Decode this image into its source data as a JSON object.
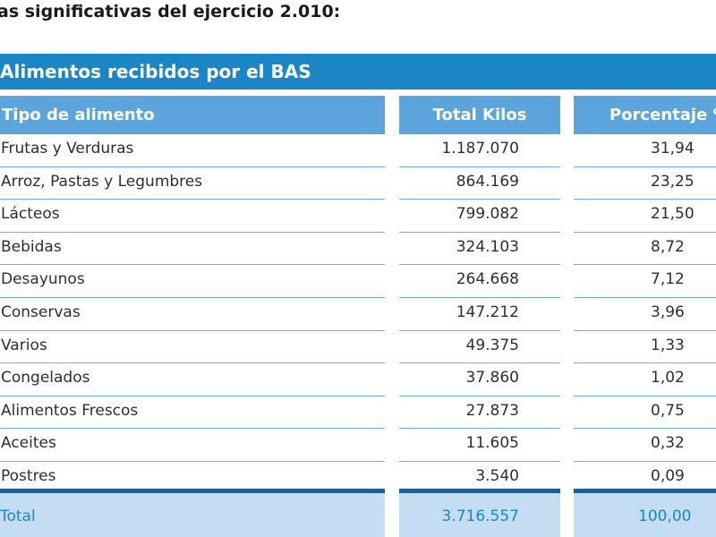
{
  "heading": "as significativas del ejercicio 2.010:",
  "table": {
    "title": "Alimentos recibidos por el BAS",
    "columns": [
      "Tipo de alimento",
      "Total Kilos",
      "Porcentaje %"
    ],
    "rows": [
      {
        "tipo": "Frutas y Verduras",
        "kilos": "1.187.070",
        "pct": "31,94"
      },
      {
        "tipo": "Arroz, Pastas y Legumbres",
        "kilos": "864.169",
        "pct": "23,25"
      },
      {
        "tipo": "Lácteos",
        "kilos": "799.082",
        "pct": "21,50"
      },
      {
        "tipo": "Bebidas",
        "kilos": "324.103",
        "pct": "8,72"
      },
      {
        "tipo": "Desayunos",
        "kilos": "264.668",
        "pct": "7,12"
      },
      {
        "tipo": "Conservas",
        "kilos": "147.212",
        "pct": "3,96"
      },
      {
        "tipo": "Varios",
        "kilos": "49.375",
        "pct": "1,33"
      },
      {
        "tipo": "Congelados",
        "kilos": "37.860",
        "pct": "1,02"
      },
      {
        "tipo": "Alimentos Frescos",
        "kilos": "27.873",
        "pct": "0,75"
      },
      {
        "tipo": "Aceites",
        "kilos": "11.605",
        "pct": "0,32"
      },
      {
        "tipo": "Postres",
        "kilos": "3.540",
        "pct": "0,09"
      }
    ],
    "total": {
      "label": "Total",
      "kilos": "3.716.557",
      "pct": "100,00"
    }
  },
  "colors": {
    "banner": "#1a86c6",
    "header": "#5ba5dc",
    "row_rule": "#6fb0df",
    "total_band": "#c5ddf2",
    "total_text": "#1a86c6",
    "separator": "#1f5f93"
  }
}
